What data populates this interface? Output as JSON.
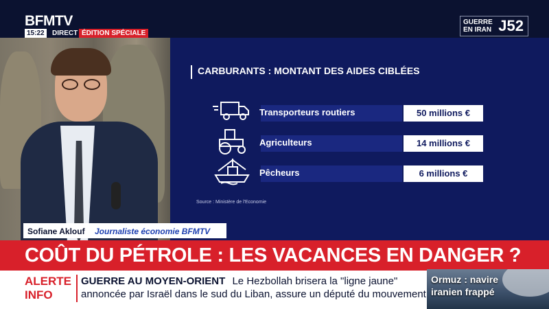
{
  "channel": {
    "logo": "BFMTV",
    "time": "15:22",
    "live_label": "DIRECT",
    "edition_label": "ÉDITION SPÉCIALE",
    "badge_text": "GUERRE EN IRAN",
    "badge_day": "J52"
  },
  "infographic": {
    "title": "CARBURANTS : MONTANT DES AIDES CIBLÉES",
    "rows": [
      {
        "label": "Transporteurs routiers",
        "value": "50 millions €",
        "icon": "truck-icon"
      },
      {
        "label": "Agriculteurs",
        "value": "14 millions €",
        "icon": "tractor-icon"
      },
      {
        "label": "Pêcheurs",
        "value": "6 millions €",
        "icon": "fishing-boat-icon"
      }
    ],
    "source": "Source : Ministère de l'Economie"
  },
  "speaker": {
    "name": "Sofiane Aklouf",
    "role": "Journaliste économie BFMTV"
  },
  "headline": "COÛT DU PÉTROLE : LES VACANCES EN DANGER ?",
  "ticker": {
    "alert_label_1": "ALERTE",
    "alert_label_2": "INFO",
    "topic": "GUERRE AU MOYEN-ORIENT",
    "line1": "Le Hezbollah brisera la \"ligne jaune\"",
    "line2": "annoncée par Israël dans le sud du Liban, assure un député du mouvement."
  },
  "promo": {
    "text": "Ormuz : navire iranien frappé"
  }
}
